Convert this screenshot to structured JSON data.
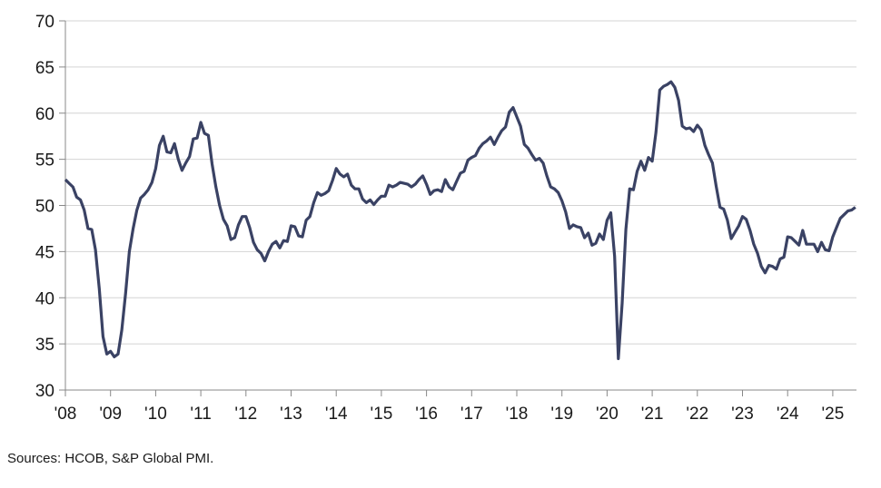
{
  "chart_data": {
    "type": "line",
    "title": "",
    "xlabel": "",
    "ylabel": "",
    "ylim": [
      30,
      70
    ],
    "yticks": [
      "30",
      "35",
      "40",
      "45",
      "50",
      "55",
      "60",
      "65",
      "70"
    ],
    "xticks": [
      "'08",
      "'09",
      "'10",
      "'11",
      "'12",
      "'13",
      "'14",
      "'15",
      "'16",
      "'17",
      "'18",
      "'19",
      "'20",
      "'21",
      "'22",
      "'23",
      "'24",
      "'25"
    ],
    "x_start": "2008-01",
    "x_end": "2025-07",
    "x_frequency": "monthly",
    "grid": "horizontal",
    "line_color": "#3a4264",
    "grid_color": "#d4d4d4",
    "series": [
      {
        "values": [
          52.8,
          52.4,
          52.0,
          50.9,
          50.6,
          49.5,
          47.5,
          47.4,
          45.2,
          41.0,
          35.8,
          33.9,
          34.2,
          33.6,
          33.9,
          36.5,
          40.5,
          45.0,
          47.5,
          49.5,
          50.8,
          51.2,
          51.7,
          52.5,
          54.0,
          56.5,
          57.5,
          55.8,
          55.7,
          56.7,
          55.0,
          53.8,
          54.6,
          55.3,
          57.2,
          57.3,
          59.0,
          57.8,
          57.6,
          54.5,
          52.0,
          50.0,
          48.5,
          47.8,
          46.3,
          46.5,
          47.9,
          48.8,
          48.8,
          47.6,
          46.0,
          45.2,
          44.8,
          44.0,
          45.0,
          45.8,
          46.1,
          45.4,
          46.2,
          46.1,
          47.8,
          47.7,
          46.7,
          46.6,
          48.4,
          48.8,
          50.3,
          51.4,
          51.1,
          51.3,
          51.6,
          52.7,
          54.0,
          53.4,
          53.1,
          53.4,
          52.2,
          51.8,
          51.8,
          50.7,
          50.3,
          50.6,
          50.1,
          50.6,
          51.0,
          51.0,
          52.2,
          52.0,
          52.2,
          52.5,
          52.4,
          52.3,
          52.0,
          52.3,
          52.8,
          53.2,
          52.3,
          51.2,
          51.6,
          51.7,
          51.5,
          52.8,
          52.0,
          51.7,
          52.6,
          53.5,
          53.7,
          54.9,
          55.2,
          55.4,
          56.2,
          56.7,
          57.0,
          57.4,
          56.6,
          57.4,
          58.1,
          58.5,
          60.1,
          60.6,
          59.6,
          58.6,
          56.6,
          56.2,
          55.5,
          54.9,
          55.1,
          54.6,
          53.2,
          52.0,
          51.8,
          51.4,
          50.5,
          49.3,
          47.5,
          47.9,
          47.7,
          47.6,
          46.5,
          47.0,
          45.7,
          45.9,
          46.9,
          46.3,
          48.4,
          49.2,
          44.5,
          33.4,
          39.4,
          47.4,
          51.8,
          51.7,
          53.7,
          54.8,
          53.8,
          55.2,
          54.8,
          57.9,
          62.5,
          62.9,
          63.1,
          63.4,
          62.8,
          61.4,
          58.6,
          58.3,
          58.4,
          58.0,
          58.7,
          58.2,
          56.5,
          55.5,
          54.6,
          52.1,
          49.8,
          49.6,
          48.4,
          46.4,
          47.1,
          47.8,
          48.8,
          48.5,
          47.3,
          45.8,
          44.8,
          43.4,
          42.7,
          43.5,
          43.4,
          43.1,
          44.2,
          44.4,
          46.6,
          46.5,
          46.1,
          45.7,
          47.3,
          45.8,
          45.8,
          45.8,
          45.0,
          46.0,
          45.2,
          45.1,
          46.6,
          47.6,
          48.6,
          49.0,
          49.4,
          49.5,
          49.8
        ]
      }
    ]
  },
  "footer": {
    "source": "Sources: HCOB, S&P Global PMI."
  }
}
